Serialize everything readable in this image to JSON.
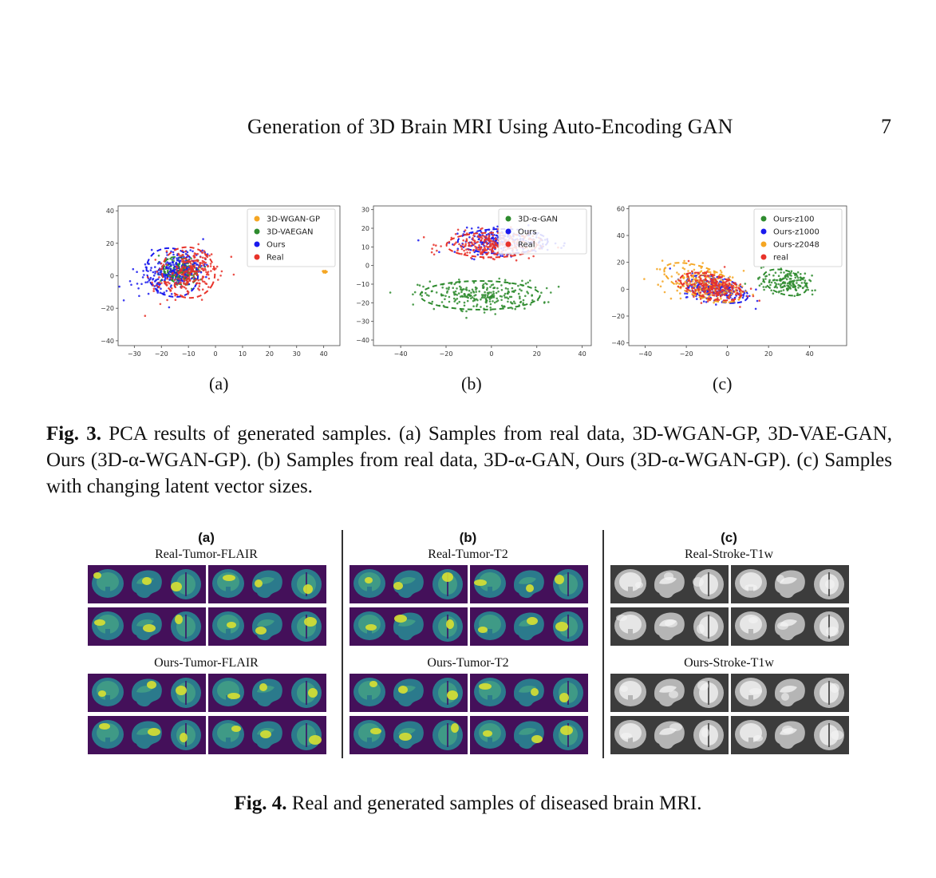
{
  "header": {
    "running_title": "Generation of 3D Brain MRI Using Auto-Encoding GAN",
    "page_number": "7"
  },
  "fig3": {
    "caption_label": "Fig. 3.",
    "caption_text": "PCA results of generated samples. (a) Samples from real data, 3D-WGAN-GP, 3D-VAE-GAN, Ours (3D-α-WGAN-GP). (b) Samples from real data, 3D-α-GAN, Ours (3D-α-WGAN-GP). (c) Samples with changing latent vector sizes.",
    "sublabels": [
      "(a)",
      "(b)",
      "(c)"
    ]
  },
  "chart_data": [
    {
      "type": "scatter",
      "panel": "(a)",
      "xlim": [
        -36,
        46
      ],
      "ylim": [
        -43,
        43
      ],
      "xticks": [
        -30,
        -20,
        -10,
        0,
        10,
        20,
        30,
        40
      ],
      "yticks": [
        -40,
        -20,
        0,
        20,
        40
      ],
      "legend_position": "top-right",
      "series": [
        {
          "name": "3D-WGAN-GP",
          "color": "#f5a623",
          "center": [
            40.5,
            2.5
          ],
          "spread": [
            0.8,
            0.5
          ],
          "n": 30
        },
        {
          "name": "3D-VAEGAN",
          "color": "#2e8b2e",
          "center": [
            -13,
            3
          ],
          "spread": [
            6,
            7
          ],
          "n": 220
        },
        {
          "name": "Ours",
          "color": "#1a1aee",
          "center": [
            -16,
            2
          ],
          "spread": [
            9,
            13
          ],
          "n": 250
        },
        {
          "name": "Real",
          "color": "#e8332a",
          "center": [
            -10,
            2
          ],
          "spread": [
            9,
            14
          ],
          "n": 250
        }
      ]
    },
    {
      "type": "scatter",
      "panel": "(b)",
      "xlim": [
        -52,
        44
      ],
      "ylim": [
        -43,
        32
      ],
      "xticks": [
        -40,
        -20,
        0,
        20,
        40
      ],
      "yticks": [
        -40,
        -30,
        -20,
        -10,
        0,
        10,
        20,
        30
      ],
      "legend_position": "top-right",
      "series": [
        {
          "name": "3D-α-GAN",
          "color": "#2e8b2e",
          "center": [
            -5,
            -16
          ],
          "spread": [
            24,
            7
          ],
          "n": 260
        },
        {
          "name": "Ours",
          "color": "#1a1aee",
          "center": [
            5,
            13
          ],
          "spread": [
            18,
            6
          ],
          "n": 240
        },
        {
          "name": "Real",
          "color": "#e8332a",
          "center": [
            0,
            11
          ],
          "spread": [
            18,
            6
          ],
          "n": 240
        }
      ]
    },
    {
      "type": "scatter",
      "panel": "(c)",
      "xlim": [
        -48,
        58
      ],
      "ylim": [
        -42,
        62
      ],
      "xticks": [
        -40,
        -20,
        0,
        20,
        40
      ],
      "yticks": [
        -40,
        -20,
        0,
        20,
        40,
        60
      ],
      "legend_position": "top-right",
      "series": [
        {
          "name": "Ours-z100",
          "color": "#2e8b2e",
          "center": [
            28,
            5
          ],
          "spread": [
            10,
            8
          ],
          "n": 160
        },
        {
          "name": "Ours-z1000",
          "color": "#1a1aee",
          "center": [
            -5,
            0
          ],
          "spread": [
            14,
            8
          ],
          "n": 220
        },
        {
          "name": "Ours-z2048",
          "color": "#f5a623",
          "center": [
            -12,
            5
          ],
          "spread": [
            18,
            10
          ],
          "n": 200
        },
        {
          "name": "real",
          "color": "#e8332a",
          "center": [
            -8,
            2
          ],
          "spread": [
            14,
            8
          ],
          "n": 220
        }
      ]
    }
  ],
  "fig4": {
    "caption_label": "Fig. 4.",
    "caption_text": "Real and generated samples of diseased brain MRI.",
    "panels": [
      {
        "label": "(a)",
        "real_title": "Real-Tumor-FLAIR",
        "ours_title": "Ours-Tumor-FLAIR",
        "style": "viridis"
      },
      {
        "label": "(b)",
        "real_title": "Real-Tumor-T2",
        "ours_title": "Ours-Tumor-T2",
        "style": "viridis"
      },
      {
        "label": "(c)",
        "real_title": "Real-Stroke-T1w",
        "ours_title": "Ours-Stroke-T1w",
        "style": "gray"
      }
    ]
  }
}
